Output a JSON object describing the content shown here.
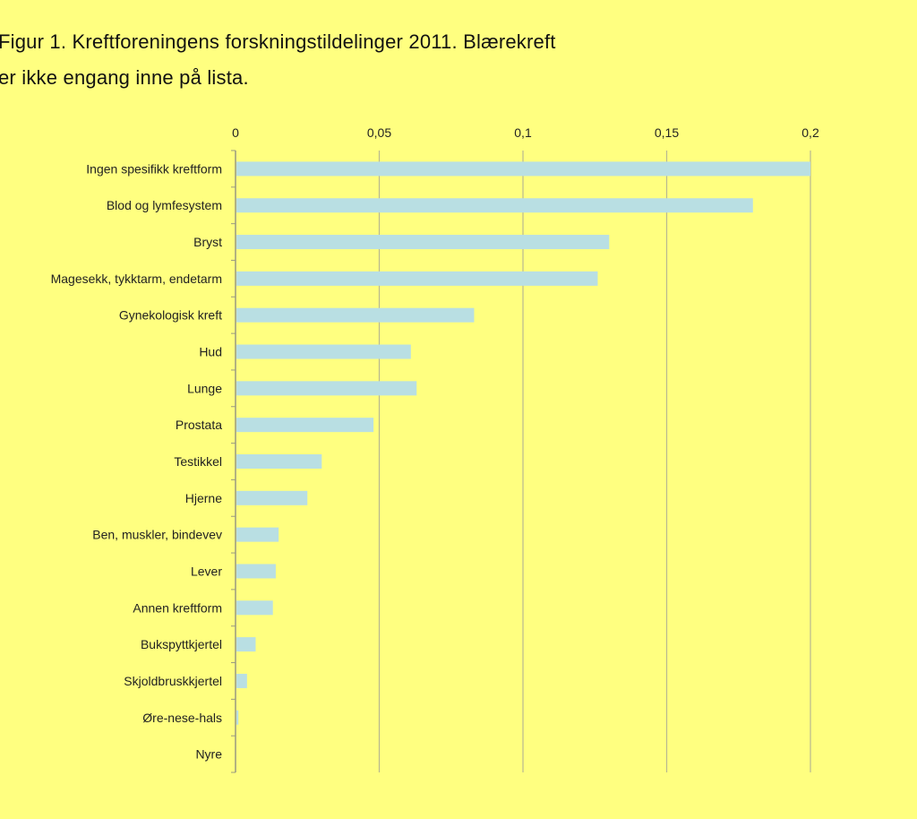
{
  "caption": {
    "line1": "Figur 1. Kreftforeningens forskningstildelinger 2011. Blærekreft",
    "line2": "er ikke engang inne på lista."
  },
  "chart_data": {
    "type": "bar",
    "orientation": "horizontal",
    "title": "",
    "xlabel": "",
    "ylabel": "",
    "xlim": [
      0,
      0.2
    ],
    "xticks": [
      0,
      0.05,
      0.1,
      0.15,
      0.2
    ],
    "xtick_labels": [
      "0",
      "0,05",
      "0,1",
      "0,15",
      "0,2"
    ],
    "grid": true,
    "bar_color": "#b9dfe3",
    "categories": [
      "Ingen spesifikk kreftform",
      "Blod og lymfesystem",
      "Bryst",
      "Magesekk, tykktarm, endetarm",
      "Gynekologisk kreft",
      "Hud",
      "Lunge",
      "Prostata",
      "Testikkel",
      "Hjerne",
      "Ben, muskler, bindevev",
      "Lever",
      "Annen kreftform",
      "Bukspyttkjertel",
      "Skjoldbruskkjertel",
      "Øre-nese-hals",
      "Nyre"
    ],
    "values": [
      0.2,
      0.18,
      0.13,
      0.126,
      0.083,
      0.061,
      0.063,
      0.048,
      0.03,
      0.025,
      0.015,
      0.014,
      0.013,
      0.007,
      0.004,
      0.001,
      0
    ]
  }
}
